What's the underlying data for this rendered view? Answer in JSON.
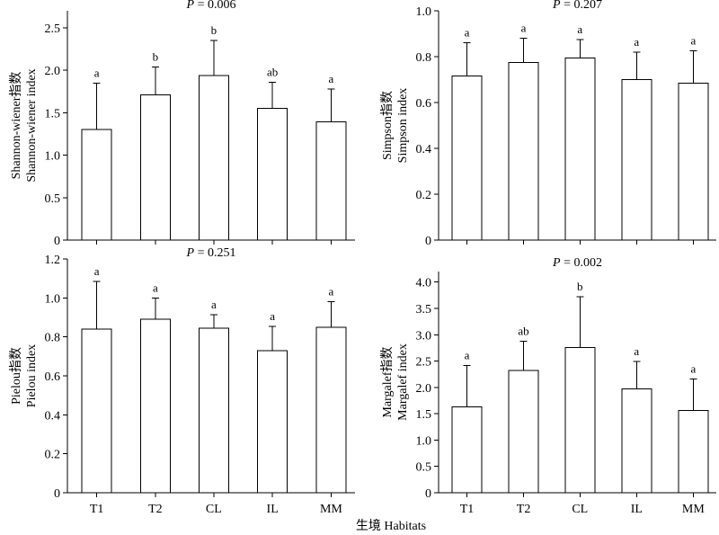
{
  "figure": {
    "xlabel": "生境 Habitats",
    "categories": [
      "T1",
      "T2",
      "CL",
      "IL",
      "MM"
    ]
  },
  "chart_data": [
    {
      "type": "bar",
      "title": "",
      "annotation": {
        "prefix": "P",
        "text": " = 0.006"
      },
      "ylabel_lines": [
        "Shannon-wiener指数",
        "Shannon-wiener index"
      ],
      "categories": [
        "T1",
        "T2",
        "CL",
        "IL",
        "MM"
      ],
      "values": [
        1.3,
        1.71,
        1.94,
        1.55,
        1.39
      ],
      "errors": [
        0.55,
        0.33,
        0.41,
        0.31,
        0.39
      ],
      "significance": [
        "a",
        "b",
        "b",
        "ab",
        "a"
      ],
      "ylim": [
        0,
        2.7
      ],
      "yticks": [
        "0",
        "0.5",
        "1.0",
        "1.5",
        "2.0",
        "2.5"
      ],
      "ytick_values": [
        0,
        0.5,
        1.0,
        1.5,
        2.0,
        2.5
      ],
      "grid": false,
      "legend": "none"
    },
    {
      "type": "bar",
      "title": "",
      "annotation": {
        "prefix": "P",
        "text": " = 0.207"
      },
      "ylabel_lines": [
        "Simpson指数",
        "Simpson index"
      ],
      "categories": [
        "T1",
        "T2",
        "CL",
        "IL",
        "MM"
      ],
      "values": [
        0.715,
        0.775,
        0.795,
        0.7,
        0.685
      ],
      "errors": [
        0.145,
        0.105,
        0.08,
        0.12,
        0.14
      ],
      "significance": [
        "a",
        "a",
        "a",
        "a",
        "a"
      ],
      "ylim": [
        0,
        1.0
      ],
      "yticks": [
        "0",
        "0.2",
        "0.4",
        "0.6",
        "0.8",
        "1.0"
      ],
      "ytick_values": [
        0,
        0.2,
        0.4,
        0.6,
        0.8,
        1.0
      ],
      "grid": false,
      "legend": "none"
    },
    {
      "type": "bar",
      "title": "",
      "annotation": {
        "prefix": "P",
        "text": " = 0.251"
      },
      "ylabel_lines": [
        "Pielou指数",
        "Pielou index"
      ],
      "categories": [
        "T1",
        "T2",
        "CL",
        "IL",
        "MM"
      ],
      "values": [
        0.84,
        0.89,
        0.845,
        0.73,
        0.85
      ],
      "errors": [
        0.245,
        0.11,
        0.07,
        0.125,
        0.13
      ],
      "significance": [
        "a",
        "a",
        "a",
        "a",
        "a"
      ],
      "ylim": [
        0,
        1.2
      ],
      "yticks": [
        "0",
        "0.2",
        "0.4",
        "0.6",
        "0.8",
        "1.0",
        "1.2"
      ],
      "ytick_values": [
        0,
        0.2,
        0.4,
        0.6,
        0.8,
        1.0,
        1.2
      ],
      "grid": false,
      "legend": "none"
    },
    {
      "type": "bar",
      "title": "",
      "annotation": {
        "prefix": "P",
        "text": " = 0.002"
      },
      "ylabel_lines": [
        "Margalef指数",
        "Margalef index"
      ],
      "categories": [
        "T1",
        "T2",
        "CL",
        "IL",
        "MM"
      ],
      "values": [
        1.63,
        2.32,
        2.76,
        1.97,
        1.56
      ],
      "errors": [
        0.79,
        0.56,
        0.96,
        0.52,
        0.6
      ],
      "significance": [
        "a",
        "ab",
        "b",
        "a",
        "a"
      ],
      "ylim": [
        0,
        4.2
      ],
      "yticks": [
        "0",
        "0.5",
        "1.0",
        "1.5",
        "2.0",
        "2.5",
        "3.0",
        "3.5",
        "4.0"
      ],
      "ytick_values": [
        0,
        0.5,
        1.0,
        1.5,
        2.0,
        2.5,
        3.0,
        3.5,
        4.0
      ],
      "grid": false,
      "legend": "none"
    }
  ]
}
